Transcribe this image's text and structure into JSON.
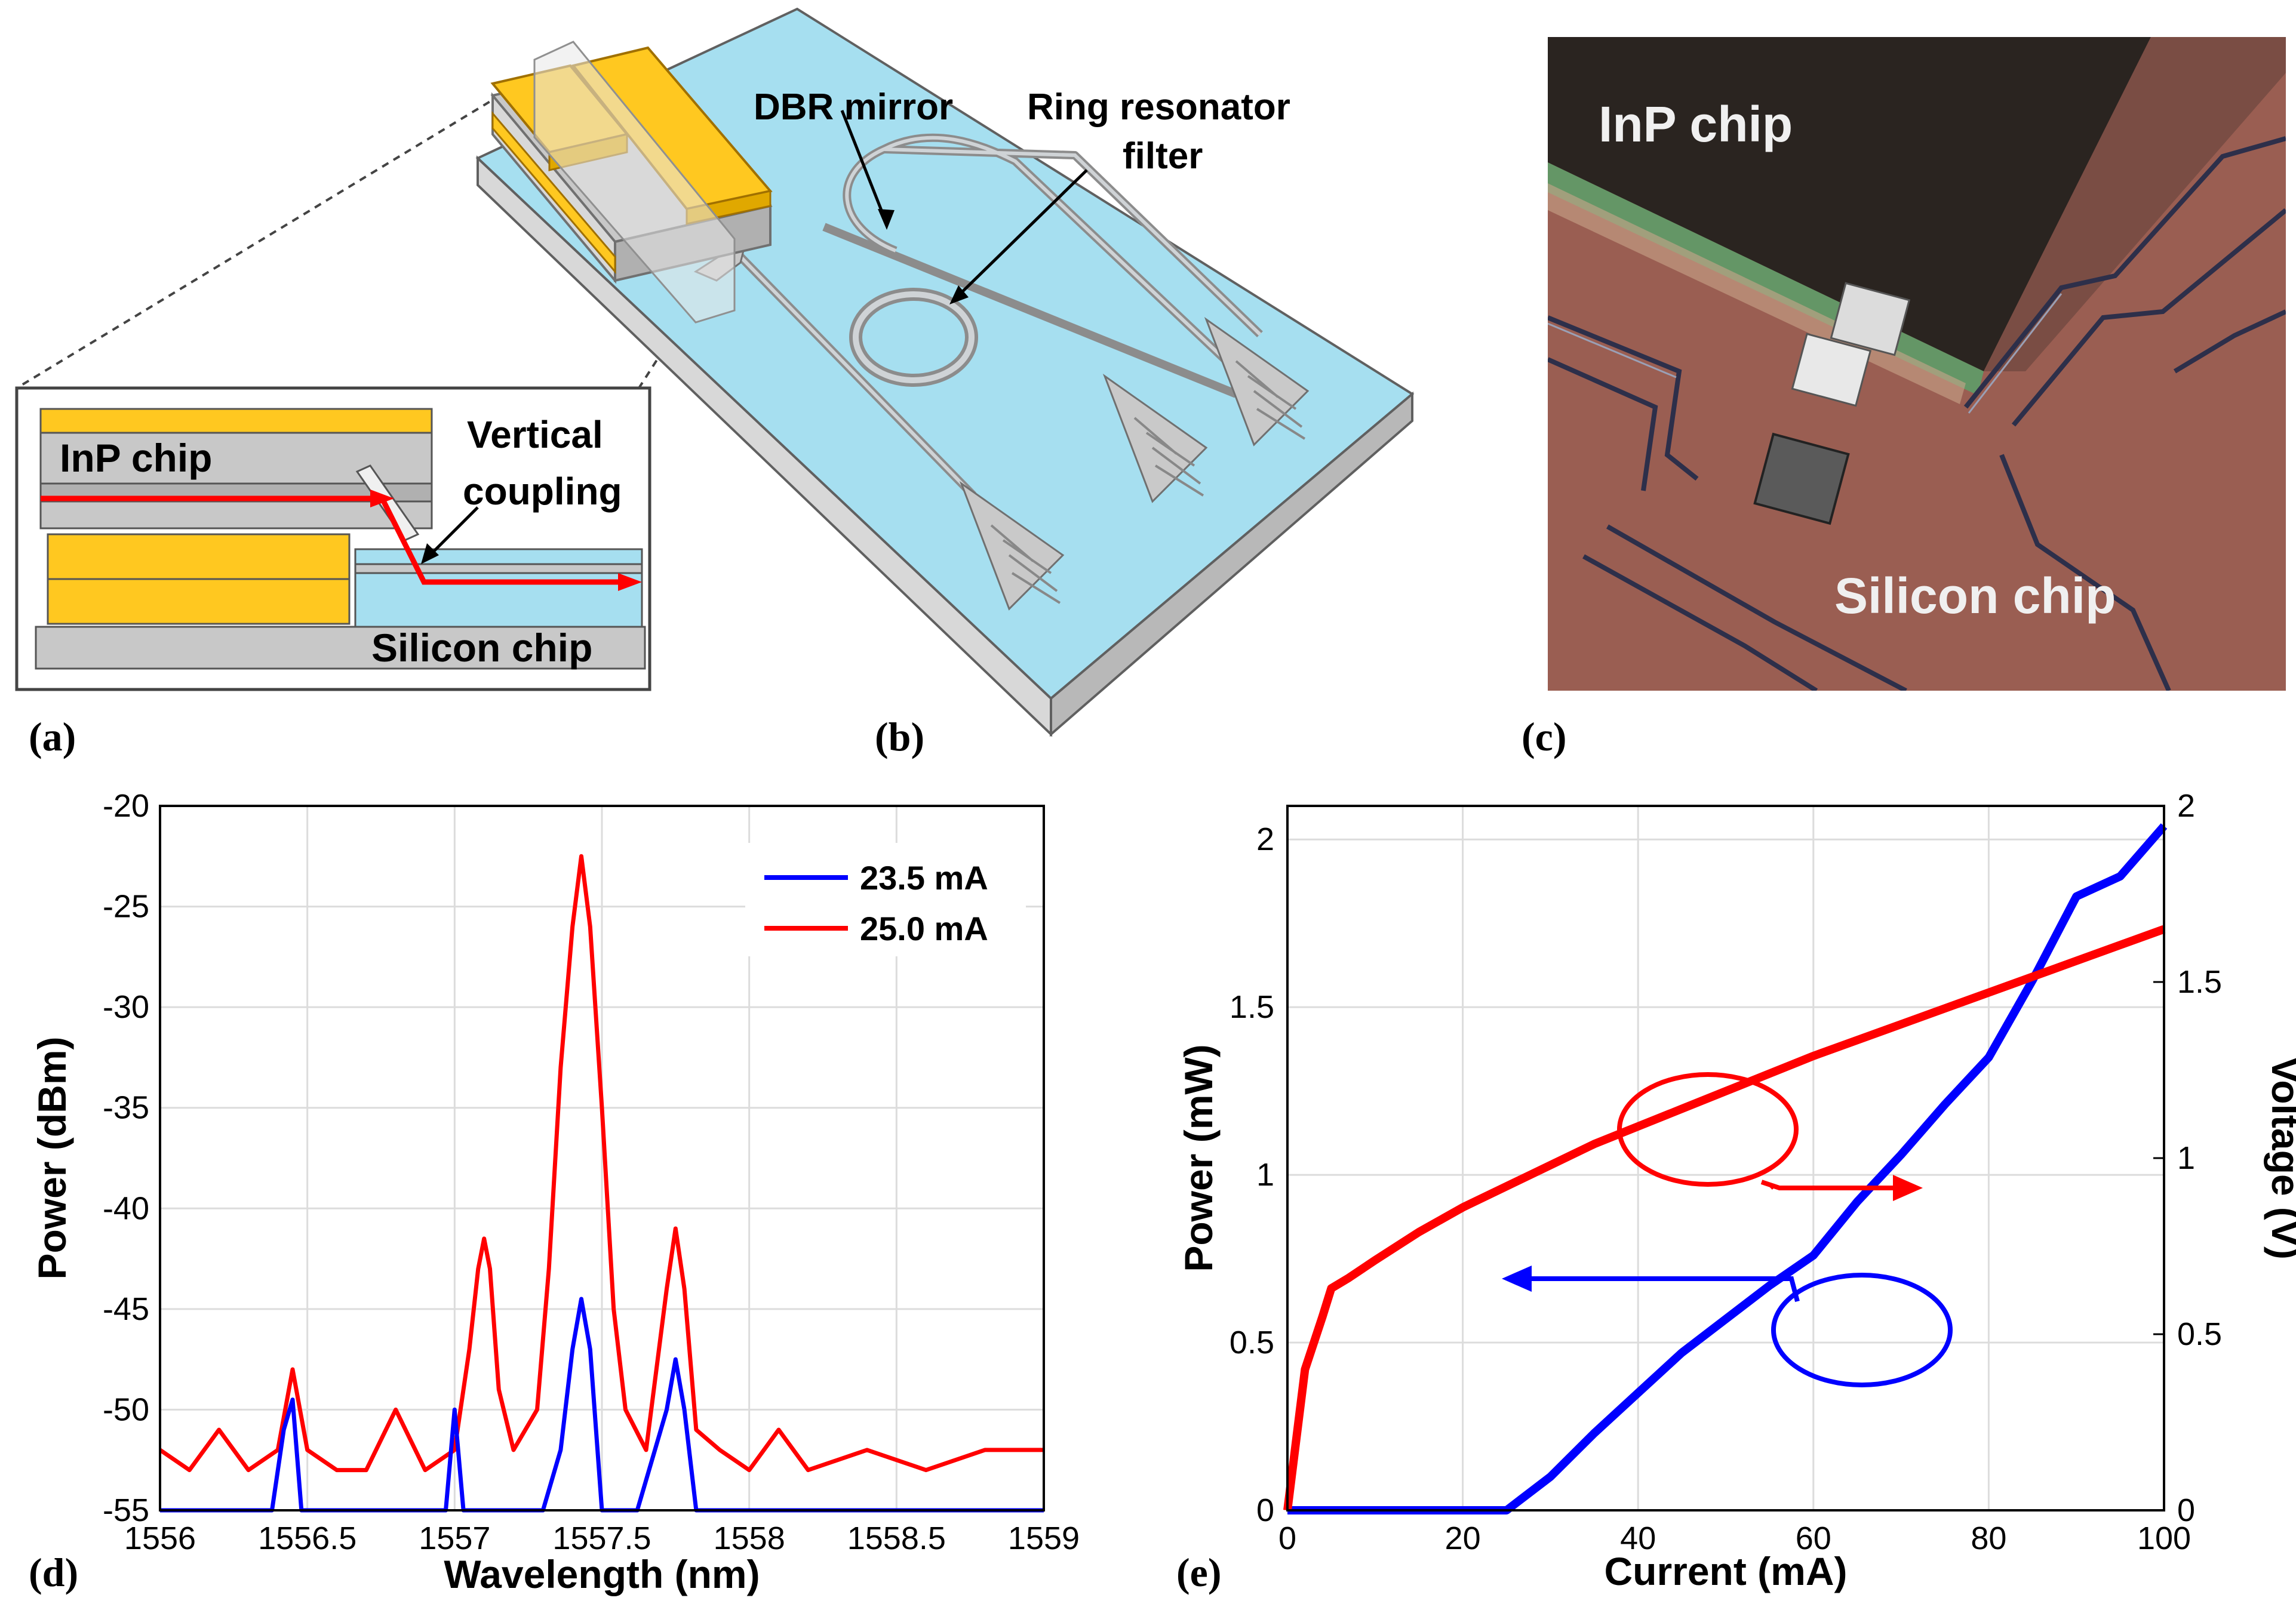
{
  "panels": {
    "a": {
      "letter": "(a)",
      "labels": {
        "inp_chip": "InP chip",
        "vertical": "Vertical",
        "coupling": "coupling",
        "silicon_chip": "Silicon  chip"
      }
    },
    "b": {
      "letter": "(b)",
      "labels": {
        "dbr_mirror": "DBR mirror",
        "ring_line1": "Ring resonator",
        "ring_line2": "filter"
      }
    },
    "c": {
      "letter": "(c)",
      "labels": {
        "inp_chip": "InP chip",
        "silicon_chip": "Silicon chip"
      }
    },
    "d": {
      "letter": "(d)"
    },
    "e": {
      "letter": "(e)"
    }
  },
  "colors": {
    "blue": "#0000ff",
    "red": "#ff0000",
    "gold": "#ffc820",
    "substrate": "#a6dff0",
    "gray": "#c9c9c9"
  },
  "chart_data": [
    {
      "id": "d",
      "type": "line",
      "xlabel": "Wavelength (nm)",
      "ylabel": "Power (dBm)",
      "xlim": [
        1556,
        1559
      ],
      "ylim": [
        -55,
        -20
      ],
      "xticks": [
        1556,
        1556.5,
        1557,
        1557.5,
        1558,
        1558.5,
        1559
      ],
      "xtick_labels": [
        "1556",
        "1556.5",
        "1557",
        "1557.5",
        "1558",
        "1558.5",
        "1559"
      ],
      "yticks": [
        -55,
        -50,
        -45,
        -40,
        -35,
        -30,
        -25,
        -20
      ],
      "ytick_labels": [
        "-55",
        "-50",
        "-45",
        "-40",
        "-35",
        "-30",
        "-25",
        "-20"
      ],
      "grid": true,
      "legend": "top-right",
      "series": [
        {
          "name": "23.5 mA",
          "color": "#0000ff",
          "x": [
            1556.0,
            1556.2,
            1556.38,
            1556.42,
            1556.45,
            1556.48,
            1556.6,
            1556.8,
            1556.97,
            1557.0,
            1557.03,
            1557.12,
            1557.2,
            1557.3,
            1557.36,
            1557.4,
            1557.43,
            1557.46,
            1557.5,
            1557.55,
            1557.62,
            1557.68,
            1557.72,
            1557.75,
            1557.78,
            1557.82,
            1557.9,
            1558.0,
            1558.2,
            1558.4,
            1558.6,
            1558.8,
            1559.0
          ],
          "y": [
            -55,
            -55,
            -55,
            -51,
            -49.5,
            -55,
            -55,
            -55,
            -55,
            -50,
            -55,
            -55,
            -55,
            -55,
            -52,
            -47,
            -44.5,
            -47,
            -55,
            -55,
            -55,
            -52,
            -50,
            -47.5,
            -50,
            -55,
            -55,
            -55,
            -55,
            -55,
            -55,
            -55,
            -55
          ]
        },
        {
          "name": "25.0 mA",
          "color": "#ff0000",
          "x": [
            1556.0,
            1556.1,
            1556.2,
            1556.3,
            1556.4,
            1556.45,
            1556.5,
            1556.6,
            1556.7,
            1556.8,
            1556.9,
            1557.0,
            1557.05,
            1557.08,
            1557.1,
            1557.12,
            1557.15,
            1557.2,
            1557.28,
            1557.32,
            1557.36,
            1557.4,
            1557.43,
            1557.46,
            1557.5,
            1557.54,
            1557.58,
            1557.65,
            1557.72,
            1557.75,
            1557.78,
            1557.82,
            1557.9,
            1558.0,
            1558.1,
            1558.2,
            1558.4,
            1558.6,
            1558.8,
            1559.0
          ],
          "y": [
            -52,
            -53,
            -51,
            -53,
            -52,
            -48,
            -52,
            -53,
            -53,
            -50,
            -53,
            -52,
            -47,
            -43,
            -41.5,
            -43,
            -49,
            -52,
            -50,
            -43,
            -33,
            -26,
            -22.5,
            -26,
            -35,
            -45,
            -50,
            -52,
            -44,
            -41,
            -44,
            -51,
            -52,
            -53,
            -51,
            -53,
            -52,
            -53,
            -52,
            -52
          ]
        }
      ]
    },
    {
      "id": "e",
      "type": "line",
      "xlabel": "Current (mA)",
      "ylabel": "Power (mW)",
      "y2label": "Voltage (V)",
      "xlim": [
        0,
        100
      ],
      "ylim": [
        0,
        2.1
      ],
      "y2lim": [
        0,
        2
      ],
      "xticks": [
        0,
        20,
        40,
        60,
        80,
        100
      ],
      "xtick_labels": [
        "0",
        "20",
        "40",
        "60",
        "80",
        "100"
      ],
      "yticks": [
        0,
        0.5,
        1,
        1.5,
        2
      ],
      "ytick_labels": [
        "0",
        "0.5",
        "1",
        "1.5",
        "2"
      ],
      "y2ticks": [
        0,
        0.5,
        1,
        1.5,
        2
      ],
      "y2tick_labels": [
        "0",
        "0.5",
        "1",
        "1.5",
        "2"
      ],
      "grid": true,
      "series": [
        {
          "name": "Power",
          "axis": "left",
          "color": "#0000ff",
          "x": [
            0,
            25,
            30,
            35,
            40,
            45,
            50,
            55,
            60,
            65,
            70,
            75,
            80,
            85,
            90,
            95,
            100
          ],
          "y": [
            0,
            0,
            0.1,
            0.23,
            0.35,
            0.47,
            0.57,
            0.67,
            0.76,
            0.92,
            1.06,
            1.21,
            1.35,
            1.58,
            1.83,
            1.89,
            2.04
          ]
        },
        {
          "name": "Voltage",
          "axis": "right",
          "color": "#ff0000",
          "x": [
            0,
            1,
            2,
            4,
            5,
            7,
            10,
            15,
            20,
            25,
            30,
            35,
            40,
            45,
            50,
            60,
            70,
            80,
            90,
            100
          ],
          "y": [
            0,
            0.2,
            0.4,
            0.55,
            0.63,
            0.66,
            0.71,
            0.79,
            0.86,
            0.92,
            0.98,
            1.04,
            1.09,
            1.14,
            1.19,
            1.29,
            1.38,
            1.47,
            1.56,
            1.65
          ]
        }
      ]
    }
  ]
}
